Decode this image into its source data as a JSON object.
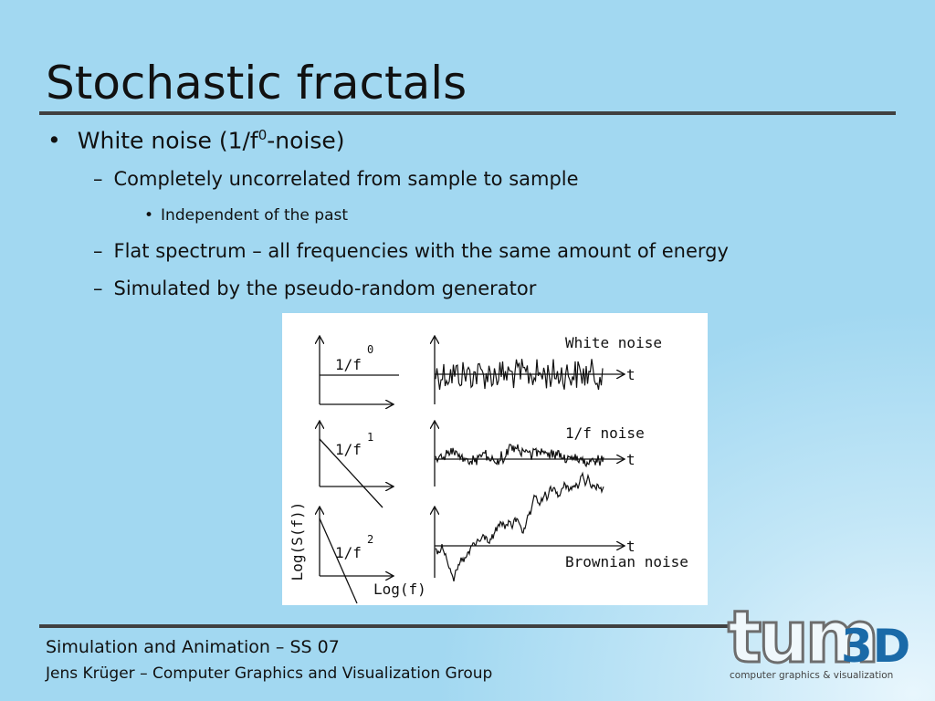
{
  "title": "Stochastic fractals",
  "bullets": {
    "main": {
      "text_before": "White noise (1/f",
      "superscript": "0",
      "text_after": "-noise)"
    },
    "sub1": "Completely uncorrelated from sample to sample",
    "sub1_detail": "Independent of the past",
    "sub2": "Flat spectrum – all frequencies with the same amount of energy",
    "sub3": "Simulated by the pseudo-random generator"
  },
  "figure": {
    "panels": [
      {
        "spectrum_label": "1/f",
        "exponent": "0",
        "signal_label": "White noise",
        "time_axis": "t"
      },
      {
        "spectrum_label": "1/f",
        "exponent": "1",
        "signal_label": "1/f noise",
        "time_axis": "t"
      },
      {
        "spectrum_label": "1/f",
        "exponent": "2",
        "signal_label": "Brownian noise",
        "time_axis": "t"
      }
    ],
    "y_axis_label": "Log(S(f))",
    "x_axis_label": "Log(f)"
  },
  "footer": {
    "course": "Simulation and Animation – SS 07",
    "author": "Jens Krüger – Computer Graphics and Visualization Group"
  },
  "logo": {
    "main": "tum",
    "suffix": "3D",
    "tagline": "computer graphics & visualization"
  }
}
